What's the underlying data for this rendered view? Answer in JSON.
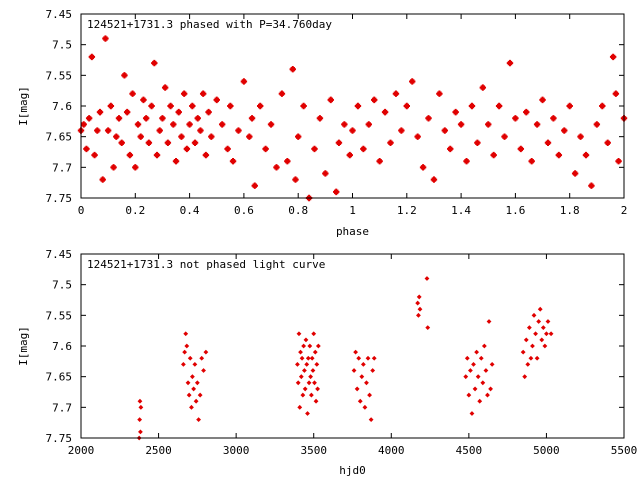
{
  "chart_data": [
    {
      "type": "scatter",
      "title": "124521+1731.3 phased with P=34.760day",
      "xlabel": "phase",
      "ylabel": "I[mag]",
      "xlim": [
        0,
        2
      ],
      "ylim": [
        7.45,
        7.75
      ],
      "y_inverted": true,
      "x_ticks": [
        "0",
        "0.2",
        "0.4",
        "0.6",
        "0.8",
        "1",
        "1.2",
        "1.4",
        "1.6",
        "1.8",
        "2"
      ],
      "y_ticks": [
        "7.45",
        "7.5",
        "7.55",
        "7.6",
        "7.65",
        "7.7",
        "7.75"
      ],
      "marker": "star",
      "color": "#e00000",
      "points": [
        [
          0.0,
          7.64
        ],
        [
          0.01,
          7.63
        ],
        [
          0.02,
          7.67
        ],
        [
          0.03,
          7.62
        ],
        [
          0.04,
          7.52
        ],
        [
          0.05,
          7.68
        ],
        [
          0.06,
          7.64
        ],
        [
          0.07,
          7.61
        ],
        [
          0.08,
          7.72
        ],
        [
          0.09,
          7.49
        ],
        [
          0.1,
          7.64
        ],
        [
          0.11,
          7.6
        ],
        [
          0.12,
          7.7
        ],
        [
          0.13,
          7.65
        ],
        [
          0.14,
          7.62
        ],
        [
          0.15,
          7.66
        ],
        [
          0.16,
          7.55
        ],
        [
          0.17,
          7.61
        ],
        [
          0.18,
          7.68
        ],
        [
          0.19,
          7.58
        ],
        [
          0.2,
          7.7
        ],
        [
          0.21,
          7.63
        ],
        [
          0.22,
          7.65
        ],
        [
          0.23,
          7.59
        ],
        [
          0.24,
          7.62
        ],
        [
          0.25,
          7.66
        ],
        [
          0.26,
          7.6
        ],
        [
          0.27,
          7.53
        ],
        [
          0.28,
          7.68
        ],
        [
          0.29,
          7.64
        ],
        [
          0.3,
          7.62
        ],
        [
          0.31,
          7.57
        ],
        [
          0.32,
          7.66
        ],
        [
          0.33,
          7.6
        ],
        [
          0.34,
          7.63
        ],
        [
          0.35,
          7.69
        ],
        [
          0.36,
          7.61
        ],
        [
          0.37,
          7.65
        ],
        [
          0.38,
          7.58
        ],
        [
          0.39,
          7.67
        ],
        [
          0.4,
          7.63
        ],
        [
          0.41,
          7.6
        ],
        [
          0.42,
          7.66
        ],
        [
          0.43,
          7.62
        ],
        [
          0.44,
          7.64
        ],
        [
          0.45,
          7.58
        ],
        [
          0.46,
          7.68
        ],
        [
          0.47,
          7.61
        ],
        [
          0.48,
          7.65
        ],
        [
          0.5,
          7.59
        ],
        [
          0.52,
          7.63
        ],
        [
          0.54,
          7.67
        ],
        [
          0.55,
          7.6
        ],
        [
          0.56,
          7.69
        ],
        [
          0.58,
          7.64
        ],
        [
          0.6,
          7.56
        ],
        [
          0.62,
          7.65
        ],
        [
          0.63,
          7.62
        ],
        [
          0.64,
          7.73
        ],
        [
          0.66,
          7.6
        ],
        [
          0.68,
          7.67
        ],
        [
          0.7,
          7.63
        ],
        [
          0.72,
          7.7
        ],
        [
          0.74,
          7.58
        ],
        [
          0.76,
          7.69
        ],
        [
          0.78,
          7.54
        ],
        [
          0.79,
          7.72
        ],
        [
          0.8,
          7.65
        ],
        [
          0.82,
          7.6
        ],
        [
          0.84,
          7.75
        ],
        [
          0.86,
          7.67
        ],
        [
          0.88,
          7.62
        ],
        [
          0.9,
          7.71
        ],
        [
          0.92,
          7.59
        ],
        [
          0.94,
          7.74
        ],
        [
          0.95,
          7.66
        ],
        [
          0.97,
          7.63
        ],
        [
          0.99,
          7.68
        ],
        [
          1.0,
          7.64
        ],
        [
          1.02,
          7.6
        ],
        [
          1.04,
          7.67
        ],
        [
          1.06,
          7.63
        ],
        [
          1.08,
          7.59
        ],
        [
          1.1,
          7.69
        ],
        [
          1.12,
          7.61
        ],
        [
          1.14,
          7.66
        ],
        [
          1.16,
          7.58
        ],
        [
          1.18,
          7.64
        ],
        [
          1.2,
          7.6
        ],
        [
          1.22,
          7.56
        ],
        [
          1.24,
          7.65
        ],
        [
          1.26,
          7.7
        ],
        [
          1.28,
          7.62
        ],
        [
          1.3,
          7.72
        ],
        [
          1.32,
          7.58
        ],
        [
          1.34,
          7.64
        ],
        [
          1.36,
          7.67
        ],
        [
          1.38,
          7.61
        ],
        [
          1.4,
          7.63
        ],
        [
          1.42,
          7.69
        ],
        [
          1.44,
          7.6
        ],
        [
          1.46,
          7.66
        ],
        [
          1.48,
          7.57
        ],
        [
          1.5,
          7.63
        ],
        [
          1.52,
          7.68
        ],
        [
          1.54,
          7.6
        ],
        [
          1.56,
          7.65
        ],
        [
          1.58,
          7.53
        ],
        [
          1.6,
          7.62
        ],
        [
          1.62,
          7.67
        ],
        [
          1.64,
          7.61
        ],
        [
          1.66,
          7.69
        ],
        [
          1.68,
          7.63
        ],
        [
          1.7,
          7.59
        ],
        [
          1.72,
          7.66
        ],
        [
          1.74,
          7.62
        ],
        [
          1.76,
          7.68
        ],
        [
          1.78,
          7.64
        ],
        [
          1.8,
          7.6
        ],
        [
          1.82,
          7.71
        ],
        [
          1.84,
          7.65
        ],
        [
          1.86,
          7.68
        ],
        [
          1.88,
          7.73
        ],
        [
          1.9,
          7.63
        ],
        [
          1.92,
          7.6
        ],
        [
          1.94,
          7.66
        ],
        [
          1.96,
          7.52
        ],
        [
          1.97,
          7.58
        ],
        [
          1.98,
          7.69
        ],
        [
          2.0,
          7.62
        ]
      ]
    },
    {
      "type": "scatter",
      "title": "124521+1731.3 not phased light curve",
      "xlabel": "hjd0",
      "ylabel": "I[mag]",
      "xlim": [
        2000,
        5500
      ],
      "ylim": [
        7.45,
        7.75
      ],
      "y_inverted": true,
      "x_ticks": [
        "2000",
        "2500",
        "3000",
        "3500",
        "4000",
        "4500",
        "5000",
        "5500"
      ],
      "y_ticks": [
        "7.45",
        "7.5",
        "7.55",
        "7.6",
        "7.65",
        "7.7",
        "7.75"
      ],
      "marker": "diamond",
      "color": "#e00000",
      "points": [
        [
          2375,
          7.75
        ],
        [
          2378,
          7.72
        ],
        [
          2380,
          7.69
        ],
        [
          2383,
          7.74
        ],
        [
          2386,
          7.7
        ],
        [
          2660,
          7.63
        ],
        [
          2668,
          7.61
        ],
        [
          2675,
          7.58
        ],
        [
          2682,
          7.6
        ],
        [
          2690,
          7.66
        ],
        [
          2697,
          7.68
        ],
        [
          2704,
          7.62
        ],
        [
          2712,
          7.7
        ],
        [
          2718,
          7.65
        ],
        [
          2726,
          7.67
        ],
        [
          2734,
          7.63
        ],
        [
          2742,
          7.69
        ],
        [
          2750,
          7.66
        ],
        [
          2758,
          7.72
        ],
        [
          2768,
          7.68
        ],
        [
          2778,
          7.62
        ],
        [
          2790,
          7.64
        ],
        [
          2805,
          7.61
        ],
        [
          3395,
          7.63
        ],
        [
          3400,
          7.66
        ],
        [
          3405,
          7.58
        ],
        [
          3410,
          7.7
        ],
        [
          3415,
          7.61
        ],
        [
          3420,
          7.65
        ],
        [
          3425,
          7.62
        ],
        [
          3430,
          7.68
        ],
        [
          3435,
          7.6
        ],
        [
          3440,
          7.64
        ],
        [
          3445,
          7.67
        ],
        [
          3450,
          7.59
        ],
        [
          3455,
          7.63
        ],
        [
          3460,
          7.71
        ],
        [
          3465,
          7.62
        ],
        [
          3470,
          7.66
        ],
        [
          3475,
          7.6
        ],
        [
          3480,
          7.65
        ],
        [
          3485,
          7.68
        ],
        [
          3490,
          7.62
        ],
        [
          3495,
          7.64
        ],
        [
          3500,
          7.58
        ],
        [
          3505,
          7.66
        ],
        [
          3510,
          7.61
        ],
        [
          3515,
          7.69
        ],
        [
          3520,
          7.63
        ],
        [
          3525,
          7.67
        ],
        [
          3530,
          7.6
        ],
        [
          3760,
          7.64
        ],
        [
          3770,
          7.61
        ],
        [
          3780,
          7.67
        ],
        [
          3790,
          7.62
        ],
        [
          3800,
          7.69
        ],
        [
          3810,
          7.65
        ],
        [
          3820,
          7.63
        ],
        [
          3830,
          7.7
        ],
        [
          3840,
          7.66
        ],
        [
          3850,
          7.62
        ],
        [
          3860,
          7.68
        ],
        [
          3870,
          7.72
        ],
        [
          3880,
          7.64
        ],
        [
          3890,
          7.62
        ],
        [
          4170,
          7.53
        ],
        [
          4175,
          7.55
        ],
        [
          4180,
          7.52
        ],
        [
          4185,
          7.54
        ],
        [
          4230,
          7.49
        ],
        [
          4235,
          7.57
        ],
        [
          4480,
          7.65
        ],
        [
          4490,
          7.62
        ],
        [
          4500,
          7.68
        ],
        [
          4510,
          7.64
        ],
        [
          4520,
          7.71
        ],
        [
          4530,
          7.63
        ],
        [
          4540,
          7.67
        ],
        [
          4550,
          7.61
        ],
        [
          4560,
          7.65
        ],
        [
          4570,
          7.69
        ],
        [
          4580,
          7.62
        ],
        [
          4590,
          7.66
        ],
        [
          4600,
          7.6
        ],
        [
          4610,
          7.64
        ],
        [
          4620,
          7.68
        ],
        [
          4630,
          7.56
        ],
        [
          4640,
          7.67
        ],
        [
          4650,
          7.63
        ],
        [
          4850,
          7.61
        ],
        [
          4860,
          7.65
        ],
        [
          4870,
          7.59
        ],
        [
          4880,
          7.63
        ],
        [
          4890,
          7.57
        ],
        [
          4900,
          7.62
        ],
        [
          4910,
          7.6
        ],
        [
          4920,
          7.55
        ],
        [
          4930,
          7.58
        ],
        [
          4940,
          7.62
        ],
        [
          4950,
          7.56
        ],
        [
          4960,
          7.54
        ],
        [
          4970,
          7.59
        ],
        [
          4980,
          7.57
        ],
        [
          4990,
          7.6
        ],
        [
          5000,
          7.58
        ],
        [
          5010,
          7.56
        ],
        [
          5030,
          7.58
        ]
      ]
    }
  ]
}
